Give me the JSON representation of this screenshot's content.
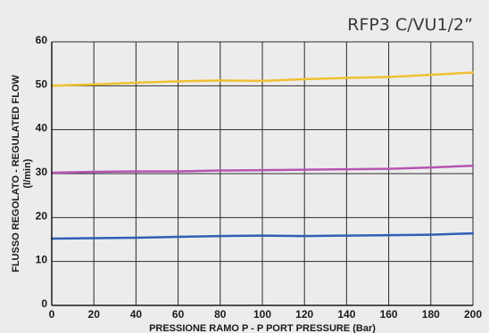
{
  "chart_data": {
    "type": "line",
    "title": "RFP3 C/VU1/2”",
    "xlabel": "PRESSIONE RAMO P - P PORT PRESSURE (Bar)",
    "ylabel": "FLUSSO REGOLATO - REGULATED FLOW",
    "ylabel_unit": "(l/min)",
    "xlim": [
      0,
      200
    ],
    "ylim": [
      0,
      60
    ],
    "x_ticks": [
      0,
      20,
      40,
      60,
      80,
      100,
      120,
      140,
      160,
      180,
      200
    ],
    "y_ticks": [
      0,
      10,
      20,
      30,
      40,
      50,
      60
    ],
    "grid": true,
    "x": [
      0,
      20,
      40,
      60,
      80,
      100,
      120,
      140,
      160,
      180,
      200
    ],
    "series": [
      {
        "color": "#f0c030",
        "values": [
          50.0,
          50.3,
          50.7,
          51.0,
          51.2,
          51.1,
          51.5,
          51.8,
          52.0,
          52.5,
          53.0
        ]
      },
      {
        "color": "#b655b0",
        "values": [
          30.2,
          30.4,
          30.5,
          30.5,
          30.7,
          30.8,
          30.9,
          31.0,
          31.1,
          31.4,
          31.8
        ]
      },
      {
        "color": "#2e5fb5",
        "values": [
          15.2,
          15.3,
          15.4,
          15.6,
          15.8,
          15.9,
          15.8,
          15.9,
          16.0,
          16.1,
          16.4
        ]
      }
    ]
  }
}
